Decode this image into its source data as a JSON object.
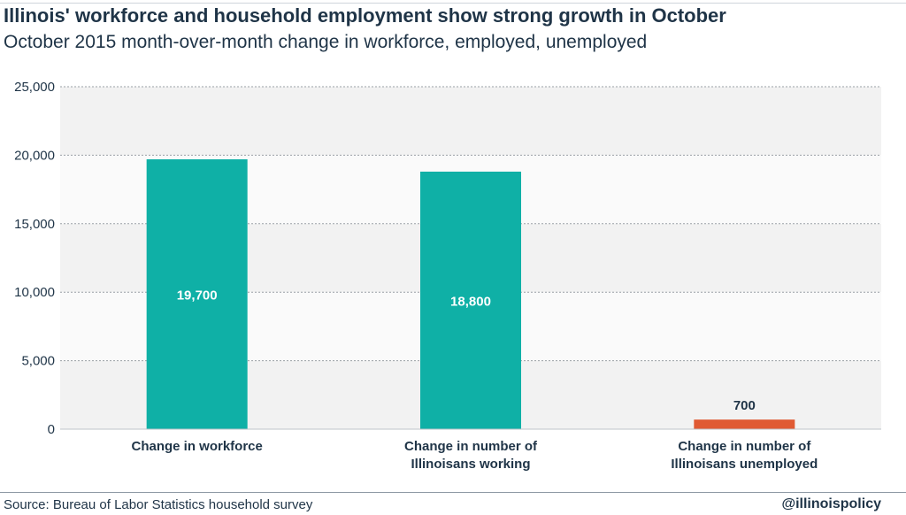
{
  "header": {
    "title": "Illinois' workforce and household employment show strong growth in October",
    "subtitle": "October 2015 month-over-month change in workforce, employed, unemployed"
  },
  "footer": {
    "source": "Source: Bureau of Labor Statistics household survey",
    "handle": "@illinoispolicy"
  },
  "chart_data": {
    "type": "bar",
    "title": "Illinois' workforce and household employment show strong growth in October",
    "subtitle": "October 2015 month-over-month change in workforce, employed, unemployed",
    "categories": [
      [
        "Change in workforce"
      ],
      [
        "Change in number of",
        "Illinoisans working"
      ],
      [
        "Change in number of",
        "Illinoisans unemployed"
      ]
    ],
    "values": [
      19700,
      18800,
      700
    ],
    "data_labels": [
      "19,700",
      "18,800",
      "700"
    ],
    "bar_colors": [
      "#0fb0a6",
      "#0fb0a6",
      "#e05a33"
    ],
    "yticks": [
      0,
      5000,
      10000,
      15000,
      20000,
      25000
    ],
    "ytick_labels": [
      "0",
      "5,000",
      "10,000",
      "15,000",
      "20,000",
      "25,000"
    ],
    "ylim": [
      0,
      25000
    ],
    "xlabel": "",
    "ylabel": "",
    "grid": true,
    "band_colors": [
      "#f2f2f2",
      "#fafafa"
    ]
  }
}
